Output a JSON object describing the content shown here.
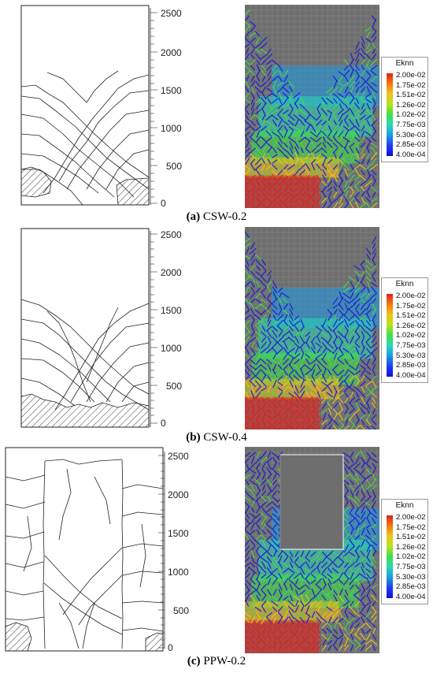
{
  "panels": [
    {
      "id": "a",
      "caption_letter": "(a)",
      "caption_text": " CSW-0.2",
      "axis_ticks": [
        "2500",
        "2000",
        "1500",
        "1000",
        "500",
        "0"
      ]
    },
    {
      "id": "b",
      "caption_letter": "(b)",
      "caption_text": " CSW-0.4",
      "axis_ticks": [
        "2500",
        "2000",
        "1500",
        "1000",
        "500",
        "0"
      ]
    },
    {
      "id": "c",
      "caption_letter": "(c)",
      "caption_text": " PPW-0.2",
      "axis_ticks": [
        "2500",
        "2000",
        "1500",
        "1000",
        "500",
        "0"
      ]
    }
  ],
  "legend": {
    "title": "Eknn",
    "labels": [
      "2.00e-02",
      "1.75e-02",
      "1.51e-02",
      "1.26e-02",
      "1.02e-02",
      "7.75e-03",
      "5.30e-03",
      "2.85e-03",
      "4.00e-04"
    ],
    "colors": [
      "#e0201c",
      "#f07a10",
      "#f2c21a",
      "#b7e21c",
      "#3fe04a",
      "#28d7b6",
      "#1c9ae8",
      "#1e3cf0",
      "#1010d8"
    ]
  },
  "colors": {
    "mesh_background": "#6e6e6e",
    "crack_marks": "#1a1ad8",
    "concrete_high": "#e0201c",
    "hatch": "#333333"
  }
}
